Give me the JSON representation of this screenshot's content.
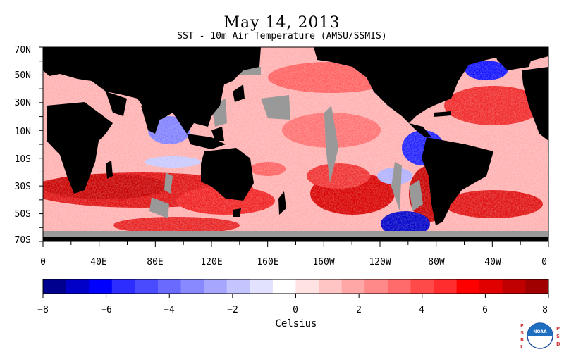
{
  "title": "May 14, 2013",
  "subtitle": "SST - 10m Air Temperature (AMSU/SSMIS)",
  "lat_labels": [
    "70N",
    "50N",
    "30N",
    "10N",
    "10S",
    "30S",
    "50S",
    "70S"
  ],
  "lon_labels": [
    "0",
    "40E",
    "80E",
    "120E",
    "160E",
    "160W",
    "120W",
    "80W",
    "40W",
    "0"
  ],
  "colorbar": {
    "ticks": [
      "−8",
      "−6",
      "−4",
      "−2",
      "0",
      "2",
      "4",
      "6",
      "8"
    ],
    "min": -8,
    "max": 8,
    "unit_label": "Celsius",
    "colors": [
      "#00008f",
      "#0000c8",
      "#0000ff",
      "#2d2dff",
      "#4a4aff",
      "#6a6aff",
      "#8888ff",
      "#a6a6ff",
      "#c4c4ff",
      "#e2e2ff",
      "#ffffff",
      "#ffe2e2",
      "#ffc4c4",
      "#ffa6a6",
      "#ff8888",
      "#ff6a6a",
      "#ff4a4a",
      "#ff2d2d",
      "#ff0000",
      "#e00000",
      "#c00000",
      "#a00000"
    ]
  },
  "colors": {
    "land": "#000000",
    "no_data": "#999999"
  },
  "logo": {
    "left_text": "ESRL",
    "right_text": "PSD",
    "center_text": "NOAA"
  }
}
